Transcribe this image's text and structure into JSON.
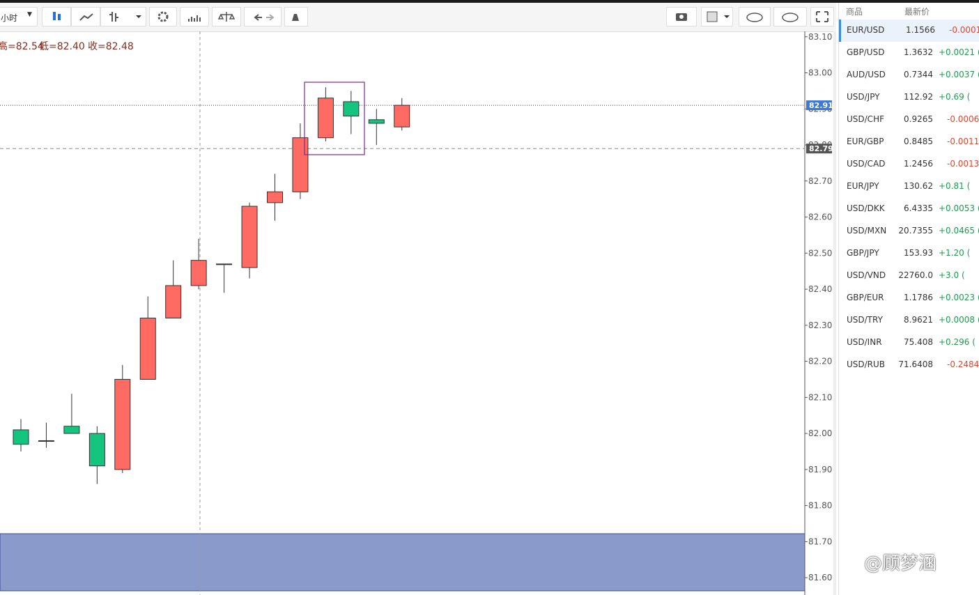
{
  "toolbar": {
    "interval": "小时"
  },
  "ohlc_header": [
    "高=82.54",
    "低=82.40",
    "收=82.48"
  ],
  "chart_data": {
    "type": "candlestick",
    "open": [
      82.01,
      81.98,
      82.02,
      82.0,
      81.9,
      82.15,
      82.32,
      82.41,
      82.47,
      82.46,
      82.64,
      82.67,
      82.82,
      82.92,
      82.87,
      82.85
    ],
    "high": [
      82.04,
      82.03,
      82.11,
      82.02,
      82.19,
      82.38,
      82.48,
      82.54,
      82.47,
      82.64,
      82.72,
      82.86,
      82.96,
      82.95,
      82.9,
      82.93
    ],
    "low": [
      81.95,
      81.96,
      82.0,
      81.86,
      81.89,
      82.15,
      82.32,
      82.4,
      82.39,
      82.43,
      82.59,
      82.65,
      82.81,
      82.83,
      82.8,
      82.84
    ],
    "close": [
      81.97,
      81.98,
      82.0,
      81.91,
      82.15,
      82.32,
      82.41,
      82.48,
      82.47,
      82.63,
      82.67,
      82.82,
      82.93,
      82.88,
      82.86,
      82.91
    ],
    "up_color": "#ff6a63",
    "down_color": "#15c47e",
    "ylim": [
      81.552,
      83.115
    ],
    "yticks": [
      {
        "value": 83.1,
        "label": "83.10"
      },
      {
        "value": 83.0,
        "label": "83.00"
      },
      {
        "value": 82.9,
        "label": "82.90"
      },
      {
        "value": 82.8,
        "label": "82.80"
      },
      {
        "value": 82.7,
        "label": "82.70"
      },
      {
        "value": 82.6,
        "label": "82.60"
      },
      {
        "value": 82.5,
        "label": "82.50"
      },
      {
        "value": 82.4,
        "label": "82.40"
      },
      {
        "value": 82.3,
        "label": "82.30"
      },
      {
        "value": 82.2,
        "label": "82.20"
      },
      {
        "value": 82.1,
        "label": "82.10"
      },
      {
        "value": 82.0,
        "label": "82.00"
      },
      {
        "value": 81.9,
        "label": "81.90"
      },
      {
        "value": 81.8,
        "label": "81.80"
      },
      {
        "value": 81.7,
        "label": "81.70"
      },
      {
        "value": 81.6,
        "label": "81.60"
      }
    ],
    "price_lines": [
      82.91,
      82.79
    ]
  },
  "watchlist": {
    "headers": [
      "商品",
      "最新价"
    ],
    "rows": [
      [
        "EUR/USD",
        "1.1566",
        "-0.0001"
      ],
      [
        "GBP/USD",
        "1.3632",
        "+0.0021 ("
      ],
      [
        "AUD/USD",
        "0.7344",
        "+0.0037 ("
      ],
      [
        "USD/JPY",
        "112.92",
        "+0.69 ("
      ],
      [
        "USD/CHF",
        "0.9265",
        "-0.0006"
      ],
      [
        "EUR/GBP",
        "0.8485",
        "-0.0011"
      ],
      [
        "USD/CAD",
        "1.2456",
        "-0.0013"
      ],
      [
        "EUR/JPY",
        "130.62",
        "+0.81 ("
      ],
      [
        "USD/DKK",
        "6.4335",
        "+0.0053 ("
      ],
      [
        "USD/MXN",
        "20.7355",
        "+0.0465 ("
      ],
      [
        "GBP/JPY",
        "153.93",
        "+1.20 ("
      ],
      [
        "USD/VND",
        "22760.0",
        "+3.0 ("
      ],
      [
        "GBP/EUR",
        "1.1786",
        "+0.0023 ("
      ],
      [
        "USD/TRY",
        "8.9621",
        "+0.0008 ("
      ],
      [
        "USD/INR",
        "75.408",
        "+0.296 ("
      ],
      [
        "USD/RUB",
        "71.6408",
        "-0.2484"
      ]
    ]
  },
  "watermark": "@顾梦涵"
}
